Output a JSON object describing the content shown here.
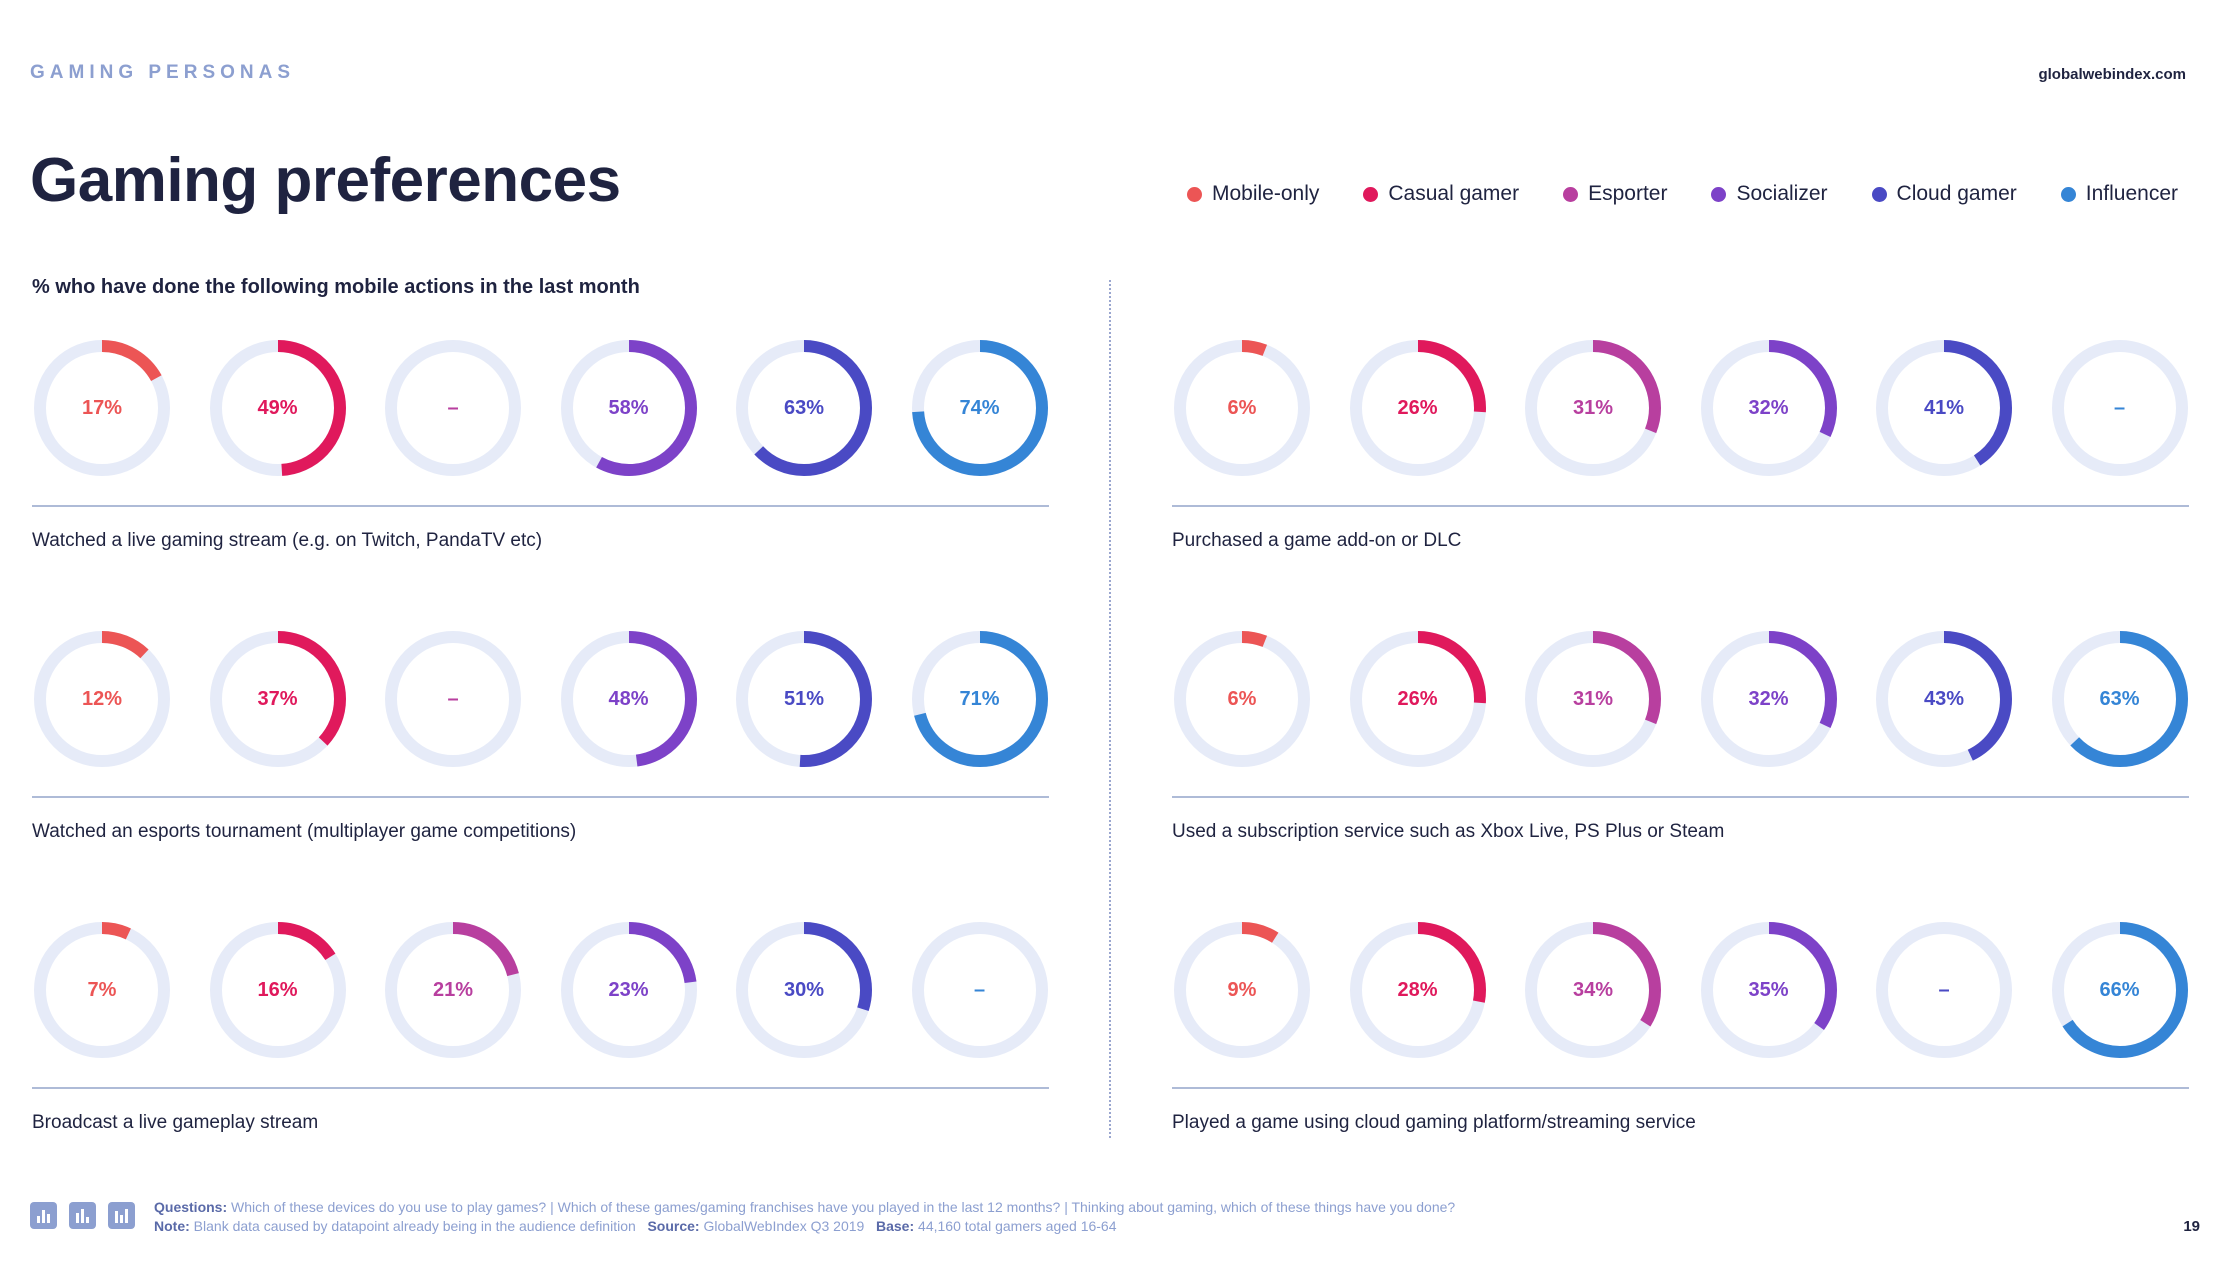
{
  "header": {
    "kicker": "GAMING PERSONAS",
    "site": "globalwebindex.com",
    "title": "Gaming preferences"
  },
  "legend": [
    {
      "label": "Mobile-only",
      "color": "#ec5555"
    },
    {
      "label": "Casual gamer",
      "color": "#e0195c"
    },
    {
      "label": "Esporter",
      "color": "#b83f9f"
    },
    {
      "label": "Socializer",
      "color": "#7d42c8"
    },
    {
      "label": "Cloud gamer",
      "color": "#4a4ac4"
    },
    {
      "label": "Influencer",
      "color": "#3585d6"
    }
  ],
  "subtitle": "% who have done the following mobile actions in the last month",
  "chart_data": {
    "type": "donut-grid",
    "series": [
      "Mobile-only",
      "Casual gamer",
      "Esporter",
      "Socializer",
      "Cloud gamer",
      "Influencer"
    ],
    "panels": [
      {
        "caption": "Watched a live gaming stream (e.g. on Twitch, PandaTV etc)",
        "values": [
          17,
          49,
          null,
          58,
          63,
          74
        ]
      },
      {
        "caption": "Purchased a game add-on or DLC",
        "values": [
          6,
          26,
          31,
          32,
          41,
          null
        ]
      },
      {
        "caption": "Watched an esports tournament (multiplayer game competitions)",
        "values": [
          12,
          37,
          null,
          48,
          51,
          71
        ]
      },
      {
        "caption": "Used a subscription service such as Xbox Live, PS Plus or Steam",
        "values": [
          6,
          26,
          31,
          32,
          43,
          63
        ]
      },
      {
        "caption": "Broadcast a live gameplay stream",
        "values": [
          7,
          16,
          21,
          23,
          30,
          null
        ]
      },
      {
        "caption": "Played a game using cloud gaming platform/streaming service",
        "values": [
          9,
          28,
          34,
          35,
          null,
          66
        ]
      }
    ],
    "blank_symbol": "–",
    "value_suffix": "%",
    "track_color": "#e6ebf8"
  },
  "footer": {
    "questions_label": "Questions:",
    "questions_text": "Which of these devices do you use to play games? | Which of these games/gaming franchises have you played in the last 12 months? | Thinking about gaming, which of these things have you done?",
    "note_label": "Note:",
    "note_text": "Blank data caused by datapoint already being in the audience definition",
    "source_label": "Source:",
    "source_text": "GlobalWebIndex Q3 2019",
    "base_label": "Base:",
    "base_text": "44,160 total gamers aged 16-64",
    "page_number": "19"
  }
}
